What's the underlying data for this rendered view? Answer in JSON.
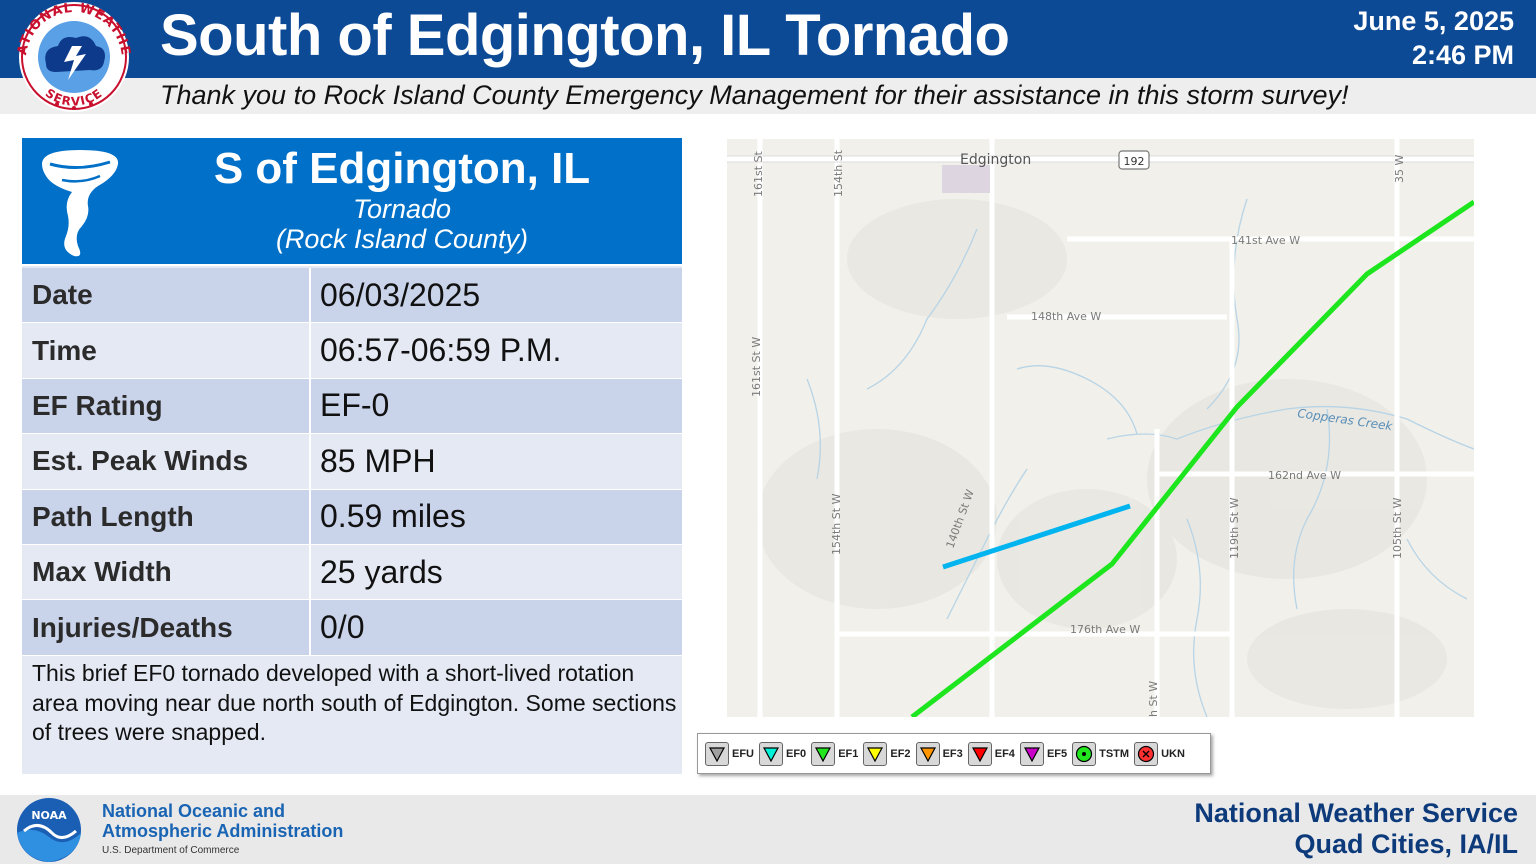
{
  "header": {
    "title": "South of Edgington, IL Tornado",
    "date": "June 5, 2025",
    "time": "2:46 PM",
    "thanks": "Thank you to Rock Island County Emergency Management for their assistance in this storm survey!",
    "logo_icon": "nws-logo",
    "logo_text_top": "NATIONAL WEATHER",
    "logo_text_bottom": "SERVICE"
  },
  "card": {
    "title": "S of Edgington, IL",
    "event_type": "Tornado",
    "county": "(Rock Island County)",
    "icon": "tornado-icon",
    "rows": [
      {
        "label": "Date",
        "value": "06/03/2025"
      },
      {
        "label": "Time",
        "value": "06:57-06:59 P.M."
      },
      {
        "label": "EF Rating",
        "value": "EF-0"
      },
      {
        "label": "Est. Peak Winds",
        "value": "85 MPH"
      },
      {
        "label": "Path Length",
        "value": "0.59 miles"
      },
      {
        "label": "Max Width",
        "value": "25 yards"
      },
      {
        "label": "Injuries/Deaths",
        "value": "0/0"
      }
    ],
    "description": "This brief EF0 tornado developed with a short-lived rotation area moving near due north south of Edgington. Some sections of trees were snapped."
  },
  "map": {
    "town_label": "Edgington",
    "highway_shield": "192",
    "roads": {
      "r161_top": "161st St",
      "r154_top": "154th St",
      "r35": "35 W",
      "r141": "141st Ave W",
      "r148": "148th Ave W",
      "r161": "161st St W",
      "creek": "Copperas Creek",
      "r162": "162nd Ave W",
      "r140": "140th St W",
      "r154": "154th St W",
      "r119": "119th St W",
      "r105": "105th St W",
      "r176": "176th Ave W",
      "rbottom": "h St W"
    },
    "track_colors": {
      "ef0": "#00b4f0",
      "ef1": "#1ee61e"
    }
  },
  "legend": {
    "items": [
      {
        "label": "EFU",
        "color": "#a0a0a0",
        "icon": "triangle-down-icon"
      },
      {
        "label": "EF0",
        "color": "#00f0d8",
        "icon": "triangle-down-icon"
      },
      {
        "label": "EF1",
        "color": "#22e61e",
        "icon": "triangle-down-icon"
      },
      {
        "label": "EF2",
        "color": "#ffff00",
        "icon": "triangle-down-icon"
      },
      {
        "label": "EF3",
        "color": "#ff9600",
        "icon": "triangle-down-icon"
      },
      {
        "label": "EF4",
        "color": "#ff0000",
        "icon": "triangle-down-icon"
      },
      {
        "label": "EF5",
        "color": "#c800c8",
        "icon": "triangle-down-icon"
      },
      {
        "label": "TSTM",
        "color": "#22e61e",
        "icon": "dot-circle-icon"
      },
      {
        "label": "UKN",
        "color": "#ff3030",
        "icon": "x-circle-icon"
      }
    ]
  },
  "footer": {
    "noaa_line1": "National Oceanic and",
    "noaa_line2": "Atmospheric Administration",
    "noaa_line3": "U.S. Department of Commerce",
    "noaa_logo_text": "NOAA",
    "nws_line1": "National Weather Service",
    "nws_line2": "Quad Cities, IA/IL"
  }
}
